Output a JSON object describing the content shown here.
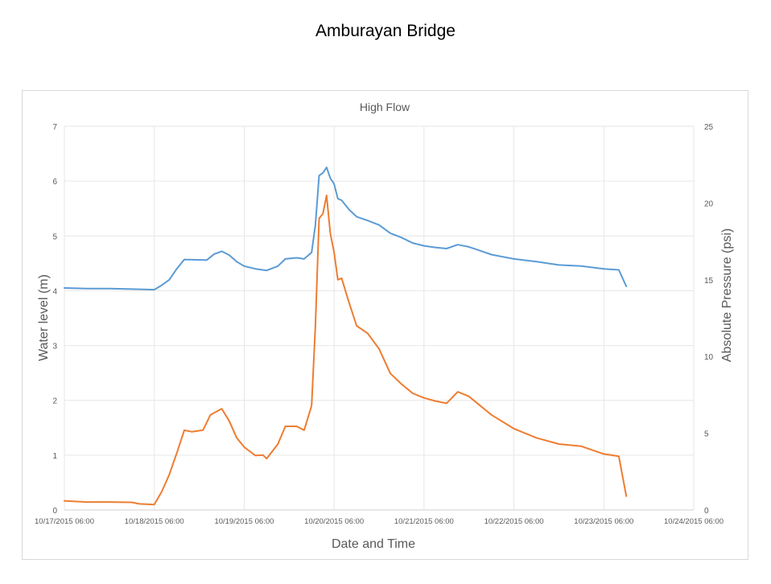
{
  "page_title": "Amburayan Bridge",
  "chart_data": {
    "type": "line",
    "title": "High Flow",
    "xlabel": "Date and Time",
    "ylabel": "Water level (m)",
    "y2label": "Absolute Pressure (psi)",
    "x_ticks": [
      "10/17/2015 06:00",
      "10/18/2015 06:00",
      "10/19/2015 06:00",
      "10/20/2015 06:00",
      "10/21/2015 06:00",
      "10/22/2015 06:00",
      "10/23/2015 06:00",
      "10/24/2015 06:00"
    ],
    "xlim": [
      "10/17/2015 06:00",
      "10/24/2015 06:00"
    ],
    "ylim": [
      0,
      7
    ],
    "y_ticks": [
      "0",
      "1",
      "2",
      "3",
      "4",
      "5",
      "6",
      "7"
    ],
    "y2lim": [
      0,
      25
    ],
    "y2_ticks": [
      "0",
      "5",
      "10",
      "15",
      "20",
      "25"
    ],
    "grid": true,
    "legend": "none",
    "series": [
      {
        "axis": "left",
        "color": "#5b9bd5",
        "points": [
          [
            "10/17/2015 06:00",
            4.05
          ],
          [
            "10/17/2015 12:00",
            4.04
          ],
          [
            "10/17/2015 18:00",
            4.04
          ],
          [
            "10/18/2015 00:00",
            4.03
          ],
          [
            "10/18/2015 06:00",
            4.02
          ],
          [
            "10/18/2015 08:00",
            4.1
          ],
          [
            "10/18/2015 10:00",
            4.2
          ],
          [
            "10/18/2015 12:00",
            4.4
          ],
          [
            "10/18/2015 14:00",
            4.57
          ],
          [
            "10/18/2015 20:00",
            4.56
          ],
          [
            "10/18/2015 22:00",
            4.67
          ],
          [
            "10/19/2015 00:00",
            4.72
          ],
          [
            "10/19/2015 02:00",
            4.65
          ],
          [
            "10/19/2015 04:00",
            4.53
          ],
          [
            "10/19/2015 06:00",
            4.45
          ],
          [
            "10/19/2015 09:00",
            4.4
          ],
          [
            "10/19/2015 12:00",
            4.37
          ],
          [
            "10/19/2015 15:00",
            4.45
          ],
          [
            "10/19/2015 17:00",
            4.58
          ],
          [
            "10/19/2015 20:00",
            4.6
          ],
          [
            "10/19/2015 22:00",
            4.58
          ],
          [
            "10/20/2015 00:00",
            4.7
          ],
          [
            "10/20/2015 01:00",
            5.2
          ],
          [
            "10/20/2015 02:00",
            6.1
          ],
          [
            "10/20/2015 03:00",
            6.15
          ],
          [
            "10/20/2015 04:00",
            6.25
          ],
          [
            "10/20/2015 05:00",
            6.05
          ],
          [
            "10/20/2015 06:00",
            5.95
          ],
          [
            "10/20/2015 07:00",
            5.68
          ],
          [
            "10/20/2015 08:00",
            5.65
          ],
          [
            "10/20/2015 10:00",
            5.48
          ],
          [
            "10/20/2015 12:00",
            5.35
          ],
          [
            "10/20/2015 15:00",
            5.28
          ],
          [
            "10/20/2015 18:00",
            5.2
          ],
          [
            "10/20/2015 21:00",
            5.05
          ],
          [
            "10/21/2015 00:00",
            4.97
          ],
          [
            "10/21/2015 03:00",
            4.87
          ],
          [
            "10/21/2015 06:00",
            4.82
          ],
          [
            "10/21/2015 09:00",
            4.79
          ],
          [
            "10/21/2015 12:00",
            4.77
          ],
          [
            "10/21/2015 15:00",
            4.84
          ],
          [
            "10/21/2015 18:00",
            4.8
          ],
          [
            "10/21/2015 21:00",
            4.73
          ],
          [
            "10/22/2015 00:00",
            4.66
          ],
          [
            "10/22/2015 06:00",
            4.58
          ],
          [
            "10/22/2015 12:00",
            4.53
          ],
          [
            "10/22/2015 18:00",
            4.47
          ],
          [
            "10/23/2015 00:00",
            4.45
          ],
          [
            "10/23/2015 06:00",
            4.4
          ],
          [
            "10/23/2015 10:00",
            4.38
          ],
          [
            "10/23/2015 12:00",
            4.08
          ]
        ]
      },
      {
        "axis": "right",
        "color": "#ed7d31",
        "points": [
          [
            "10/17/2015 06:00",
            0.6
          ],
          [
            "10/17/2015 12:00",
            0.52
          ],
          [
            "10/17/2015 18:00",
            0.52
          ],
          [
            "10/18/2015 00:00",
            0.5
          ],
          [
            "10/18/2015 02:00",
            0.4
          ],
          [
            "10/18/2015 06:00",
            0.35
          ],
          [
            "10/18/2015 08:00",
            1.2
          ],
          [
            "10/18/2015 10:00",
            2.3
          ],
          [
            "10/18/2015 12:00",
            3.7
          ],
          [
            "10/18/2015 14:00",
            5.2
          ],
          [
            "10/18/2015 16:00",
            5.1
          ],
          [
            "10/18/2015 19:00",
            5.2
          ],
          [
            "10/18/2015 21:00",
            6.2
          ],
          [
            "10/19/2015 00:00",
            6.6
          ],
          [
            "10/19/2015 02:00",
            5.8
          ],
          [
            "10/19/2015 04:00",
            4.7
          ],
          [
            "10/19/2015 06:00",
            4.1
          ],
          [
            "10/19/2015 09:00",
            3.55
          ],
          [
            "10/19/2015 11:00",
            3.58
          ],
          [
            "10/19/2015 12:00",
            3.35
          ],
          [
            "10/19/2015 15:00",
            4.3
          ],
          [
            "10/19/2015 17:00",
            5.45
          ],
          [
            "10/19/2015 20:00",
            5.45
          ],
          [
            "10/19/2015 22:00",
            5.2
          ],
          [
            "10/20/2015 00:00",
            6.8
          ],
          [
            "10/20/2015 01:00",
            12.0
          ],
          [
            "10/20/2015 02:00",
            19.0
          ],
          [
            "10/20/2015 03:00",
            19.3
          ],
          [
            "10/20/2015 04:00",
            20.5
          ],
          [
            "10/20/2015 05:00",
            18.0
          ],
          [
            "10/20/2015 06:00",
            16.8
          ],
          [
            "10/20/2015 07:00",
            15.0
          ],
          [
            "10/20/2015 08:00",
            15.1
          ],
          [
            "10/20/2015 10:00",
            13.5
          ],
          [
            "10/20/2015 12:00",
            12.0
          ],
          [
            "10/20/2015 15:00",
            11.5
          ],
          [
            "10/20/2015 18:00",
            10.5
          ],
          [
            "10/20/2015 21:00",
            8.9
          ],
          [
            "10/21/2015 00:00",
            8.2
          ],
          [
            "10/21/2015 03:00",
            7.6
          ],
          [
            "10/21/2015 06:00",
            7.3
          ],
          [
            "10/21/2015 09:00",
            7.1
          ],
          [
            "10/21/2015 12:00",
            6.95
          ],
          [
            "10/21/2015 15:00",
            7.7
          ],
          [
            "10/21/2015 18:00",
            7.4
          ],
          [
            "10/21/2015 21:00",
            6.8
          ],
          [
            "10/22/2015 00:00",
            6.2
          ],
          [
            "10/22/2015 06:00",
            5.3
          ],
          [
            "10/22/2015 12:00",
            4.7
          ],
          [
            "10/22/2015 18:00",
            4.3
          ],
          [
            "10/23/2015 00:00",
            4.15
          ],
          [
            "10/23/2015 06:00",
            3.65
          ],
          [
            "10/23/2015 10:00",
            3.5
          ],
          [
            "10/23/2015 12:00",
            0.9
          ]
        ]
      }
    ]
  }
}
